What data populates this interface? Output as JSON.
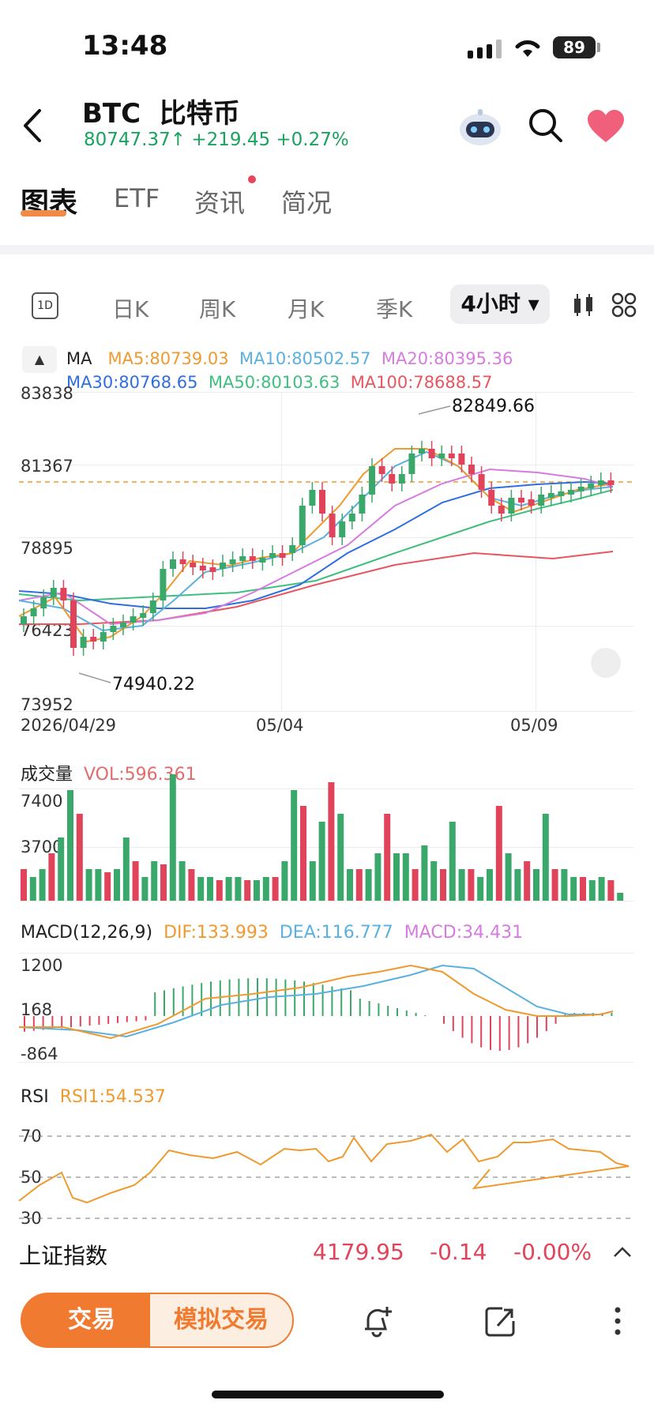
{
  "status": {
    "time": "13:48",
    "battery": "89"
  },
  "header": {
    "back_icon": "chevron-left-icon",
    "symbol": "BTC",
    "name": "比特币",
    "price": "80747.37",
    "change": "+219.45",
    "change_pct": "+0.27%",
    "up_arrow": "↑"
  },
  "tabs": [
    {
      "label": "图表"
    },
    {
      "label": "ETF"
    },
    {
      "label": "资讯"
    },
    {
      "label": "简况"
    }
  ],
  "periods": {
    "icon_label": "1D",
    "items": [
      "日K",
      "周K",
      "月K",
      "季K"
    ],
    "active": "4小时"
  },
  "ma": {
    "label": "MA",
    "ma5": "MA5:80739.03",
    "ma10": "MA10:80502.57",
    "ma20": "MA20:80395.36",
    "ma30": "MA30:80768.65",
    "ma50": "MA50:80103.63",
    "ma100": "MA100:78688.57",
    "colors": {
      "ma5": "#ef9a2f",
      "ma10": "#5ab1e0",
      "ma20": "#d67be0",
      "ma30": "#2f6ee0",
      "ma50": "#3fbf7f",
      "ma100": "#e8555e"
    }
  },
  "price_axis": [
    "83838",
    "81367",
    "78895",
    "76423",
    "73952"
  ],
  "annotations": {
    "high": "82849.66",
    "low": "74940.22"
  },
  "date_axis": [
    "2026/04/29",
    "05/04",
    "05/09"
  ],
  "volume": {
    "title": "成交量",
    "value": "VOL:596.361",
    "axis": [
      "7400",
      "3700"
    ]
  },
  "macd": {
    "title": "MACD(12,26,9)",
    "dif": "DIF:133.993",
    "dea": "DEA:116.777",
    "macd": "MACD:34.431",
    "axis": [
      "1200",
      "168",
      "-864"
    ]
  },
  "rsi": {
    "title": "RSI",
    "rsi1": "RSI1:54.537",
    "axis": [
      "70",
      "50",
      "30"
    ]
  },
  "index_ticker": {
    "name": "上证指数",
    "price": "4179.95",
    "change": "-0.14",
    "pct": "-0.00%"
  },
  "bottom": {
    "trade": "交易",
    "sim_trade": "模拟交易"
  },
  "colors": {
    "up": "#3aa86a",
    "down": "#e0445a",
    "accent": "#ef7a30"
  }
}
